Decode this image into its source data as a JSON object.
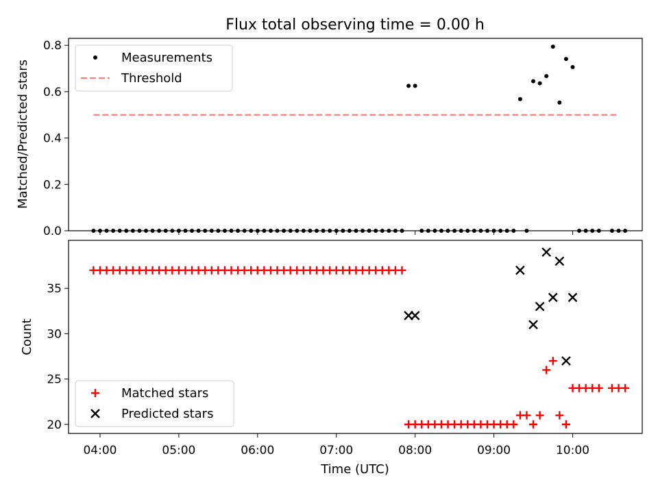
{
  "title": "Flux total observing time = 0.00 h",
  "chart_data": [
    {
      "type": "scatter",
      "ylabel": "Matched/Predicted stars",
      "ylim": [
        0,
        0.83
      ],
      "yticks": [
        0.0,
        0.2,
        0.4,
        0.6,
        0.8
      ],
      "ytick_labels": [
        "0.0",
        "0.2",
        "0.4",
        "0.6",
        "0.8"
      ],
      "legend_position": "upper-left",
      "series": [
        {
          "name": "Measurements",
          "marker": "dot",
          "color": "#000000",
          "points": [
            [
              "03:55",
              0
            ],
            [
              "04:00",
              0
            ],
            [
              "04:05",
              0
            ],
            [
              "04:10",
              0
            ],
            [
              "04:15",
              0
            ],
            [
              "04:20",
              0
            ],
            [
              "04:25",
              0
            ],
            [
              "04:30",
              0
            ],
            [
              "04:35",
              0
            ],
            [
              "04:40",
              0
            ],
            [
              "04:45",
              0
            ],
            [
              "04:50",
              0
            ],
            [
              "04:55",
              0
            ],
            [
              "05:00",
              0
            ],
            [
              "05:05",
              0
            ],
            [
              "05:10",
              0
            ],
            [
              "05:15",
              0
            ],
            [
              "05:20",
              0
            ],
            [
              "05:25",
              0
            ],
            [
              "05:30",
              0
            ],
            [
              "05:35",
              0
            ],
            [
              "05:40",
              0
            ],
            [
              "05:45",
              0
            ],
            [
              "05:50",
              0
            ],
            [
              "05:55",
              0
            ],
            [
              "06:00",
              0
            ],
            [
              "06:05",
              0
            ],
            [
              "06:10",
              0
            ],
            [
              "06:15",
              0
            ],
            [
              "06:20",
              0
            ],
            [
              "06:25",
              0
            ],
            [
              "06:30",
              0
            ],
            [
              "06:35",
              0
            ],
            [
              "06:40",
              0
            ],
            [
              "06:45",
              0
            ],
            [
              "06:50",
              0
            ],
            [
              "06:55",
              0
            ],
            [
              "07:00",
              0
            ],
            [
              "07:05",
              0
            ],
            [
              "07:10",
              0
            ],
            [
              "07:15",
              0
            ],
            [
              "07:20",
              0
            ],
            [
              "07:25",
              0
            ],
            [
              "07:30",
              0
            ],
            [
              "07:35",
              0
            ],
            [
              "07:40",
              0
            ],
            [
              "07:45",
              0
            ],
            [
              "07:50",
              0
            ],
            [
              "07:55",
              0.625
            ],
            [
              "08:00",
              0.625
            ],
            [
              "08:05",
              0
            ],
            [
              "08:10",
              0
            ],
            [
              "08:15",
              0
            ],
            [
              "08:20",
              0
            ],
            [
              "08:25",
              0
            ],
            [
              "08:30",
              0
            ],
            [
              "08:35",
              0
            ],
            [
              "08:40",
              0
            ],
            [
              "08:45",
              0
            ],
            [
              "08:50",
              0
            ],
            [
              "08:55",
              0
            ],
            [
              "09:00",
              0
            ],
            [
              "09:05",
              0
            ],
            [
              "09:10",
              0
            ],
            [
              "09:15",
              0
            ],
            [
              "09:20",
              0.568
            ],
            [
              "09:25",
              0
            ],
            [
              "09:30",
              0.645
            ],
            [
              "09:35",
              0.636
            ],
            [
              "09:40",
              0.667
            ],
            [
              "09:45",
              0.794
            ],
            [
              "09:50",
              0.553
            ],
            [
              "09:55",
              0.741
            ],
            [
              "10:00",
              0.706
            ],
            [
              "10:05",
              0
            ],
            [
              "10:10",
              0
            ],
            [
              "10:15",
              0
            ],
            [
              "10:20",
              0
            ],
            [
              "10:30",
              0
            ],
            [
              "10:35",
              0
            ],
            [
              "10:40",
              0
            ]
          ]
        },
        {
          "name": "Threshold",
          "style": "dashed-line",
          "color": "#ff7f7f",
          "points": [
            [
              "03:55",
              0.5
            ],
            [
              "10:35",
              0.5
            ]
          ]
        }
      ]
    },
    {
      "type": "scatter",
      "ylabel": "Count",
      "xlabel": "Time (UTC)",
      "ylim": [
        19,
        40.3
      ],
      "yticks": [
        20,
        25,
        30,
        35
      ],
      "ytick_labels": [
        "20",
        "25",
        "30",
        "35"
      ],
      "xticks": [
        "04:00",
        "05:00",
        "06:00",
        "07:00",
        "08:00",
        "09:00",
        "10:00"
      ],
      "xlim": [
        "03:36",
        "10:53"
      ],
      "legend_position": "lower-left",
      "series": [
        {
          "name": "Matched stars",
          "marker": "plus",
          "color": "#ff0000",
          "points": [
            [
              "03:55",
              37
            ],
            [
              "04:00",
              37
            ],
            [
              "04:05",
              37
            ],
            [
              "04:10",
              37
            ],
            [
              "04:15",
              37
            ],
            [
              "04:20",
              37
            ],
            [
              "04:25",
              37
            ],
            [
              "04:30",
              37
            ],
            [
              "04:35",
              37
            ],
            [
              "04:40",
              37
            ],
            [
              "04:45",
              37
            ],
            [
              "04:50",
              37
            ],
            [
              "04:55",
              37
            ],
            [
              "05:00",
              37
            ],
            [
              "05:05",
              37
            ],
            [
              "05:10",
              37
            ],
            [
              "05:15",
              37
            ],
            [
              "05:20",
              37
            ],
            [
              "05:25",
              37
            ],
            [
              "05:30",
              37
            ],
            [
              "05:35",
              37
            ],
            [
              "05:40",
              37
            ],
            [
              "05:45",
              37
            ],
            [
              "05:50",
              37
            ],
            [
              "05:55",
              37
            ],
            [
              "06:00",
              37
            ],
            [
              "06:05",
              37
            ],
            [
              "06:10",
              37
            ],
            [
              "06:15",
              37
            ],
            [
              "06:20",
              37
            ],
            [
              "06:25",
              37
            ],
            [
              "06:30",
              37
            ],
            [
              "06:35",
              37
            ],
            [
              "06:40",
              37
            ],
            [
              "06:45",
              37
            ],
            [
              "06:50",
              37
            ],
            [
              "06:55",
              37
            ],
            [
              "07:00",
              37
            ],
            [
              "07:05",
              37
            ],
            [
              "07:10",
              37
            ],
            [
              "07:15",
              37
            ],
            [
              "07:20",
              37
            ],
            [
              "07:25",
              37
            ],
            [
              "07:30",
              37
            ],
            [
              "07:35",
              37
            ],
            [
              "07:40",
              37
            ],
            [
              "07:45",
              37
            ],
            [
              "07:50",
              37
            ],
            [
              "07:55",
              20
            ],
            [
              "08:00",
              20
            ],
            [
              "08:05",
              20
            ],
            [
              "08:10",
              20
            ],
            [
              "08:15",
              20
            ],
            [
              "08:20",
              20
            ],
            [
              "08:25",
              20
            ],
            [
              "08:30",
              20
            ],
            [
              "08:35",
              20
            ],
            [
              "08:40",
              20
            ],
            [
              "08:45",
              20
            ],
            [
              "08:50",
              20
            ],
            [
              "08:55",
              20
            ],
            [
              "09:00",
              20
            ],
            [
              "09:05",
              20
            ],
            [
              "09:10",
              20
            ],
            [
              "09:15",
              20
            ],
            [
              "09:20",
              21
            ],
            [
              "09:25",
              21
            ],
            [
              "09:30",
              20
            ],
            [
              "09:35",
              21
            ],
            [
              "09:40",
              26
            ],
            [
              "09:45",
              27
            ],
            [
              "09:50",
              21
            ],
            [
              "09:55",
              20
            ],
            [
              "10:00",
              24
            ],
            [
              "10:05",
              24
            ],
            [
              "10:10",
              24
            ],
            [
              "10:15",
              24
            ],
            [
              "10:20",
              24
            ],
            [
              "10:30",
              24
            ],
            [
              "10:35",
              24
            ],
            [
              "10:40",
              24
            ]
          ]
        },
        {
          "name": "Predicted stars",
          "marker": "x",
          "color": "#000000",
          "points": [
            [
              "07:55",
              32
            ],
            [
              "08:00",
              32
            ],
            [
              "09:20",
              37
            ],
            [
              "09:30",
              31
            ],
            [
              "09:35",
              33
            ],
            [
              "09:40",
              39
            ],
            [
              "09:45",
              34
            ],
            [
              "09:50",
              38
            ],
            [
              "09:55",
              27
            ],
            [
              "10:00",
              34
            ]
          ]
        }
      ]
    }
  ]
}
